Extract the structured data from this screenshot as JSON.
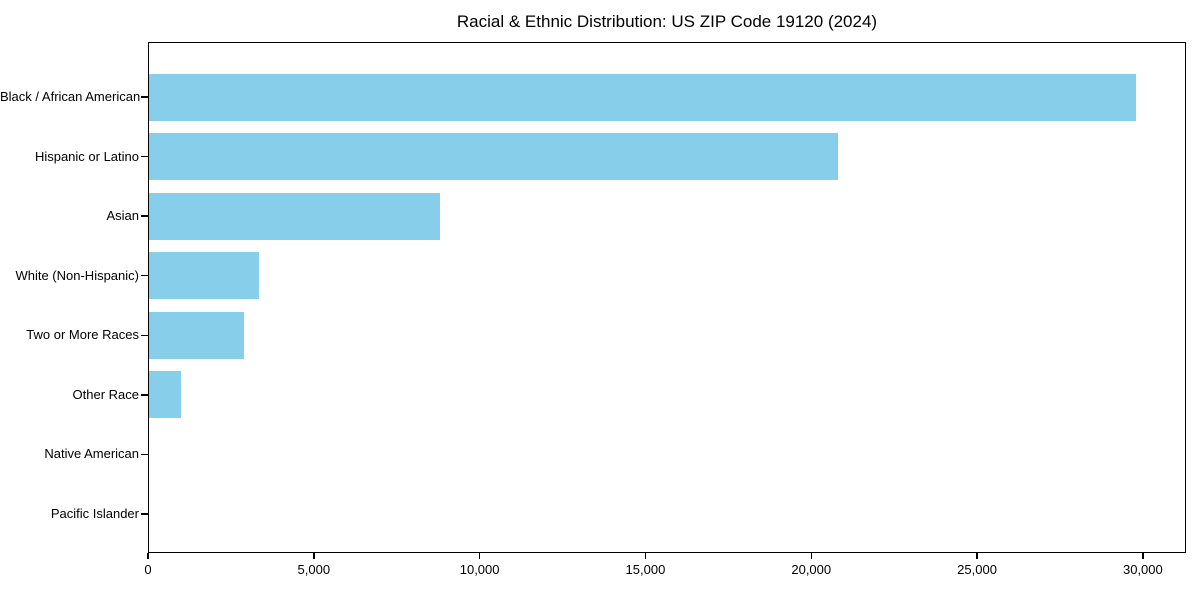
{
  "chart_data": {
    "type": "bar",
    "orientation": "horizontal",
    "title": "Racial & Ethnic Distribution: US ZIP Code 19120 (2024)",
    "categories": [
      "Black / African American",
      "Hispanic or Latino",
      "Asian",
      "White (Non-Hispanic)",
      "Two or More Races",
      "Other Race",
      "Native American",
      "Pacific Islander"
    ],
    "values": [
      29800,
      20800,
      8800,
      3350,
      2900,
      1000,
      0,
      0
    ],
    "xlabel": "",
    "ylabel": "",
    "xlim": [
      0,
      31300
    ],
    "x_ticks": [
      0,
      5000,
      10000,
      15000,
      20000,
      25000,
      30000
    ],
    "x_tick_labels": [
      "0",
      "5,000",
      "10,000",
      "15,000",
      "20,000",
      "25,000",
      "30,000"
    ],
    "bar_color": "#87CEEB",
    "axis_color": "#000000",
    "background_color": "#ffffff",
    "grid": false,
    "legend": "none"
  }
}
